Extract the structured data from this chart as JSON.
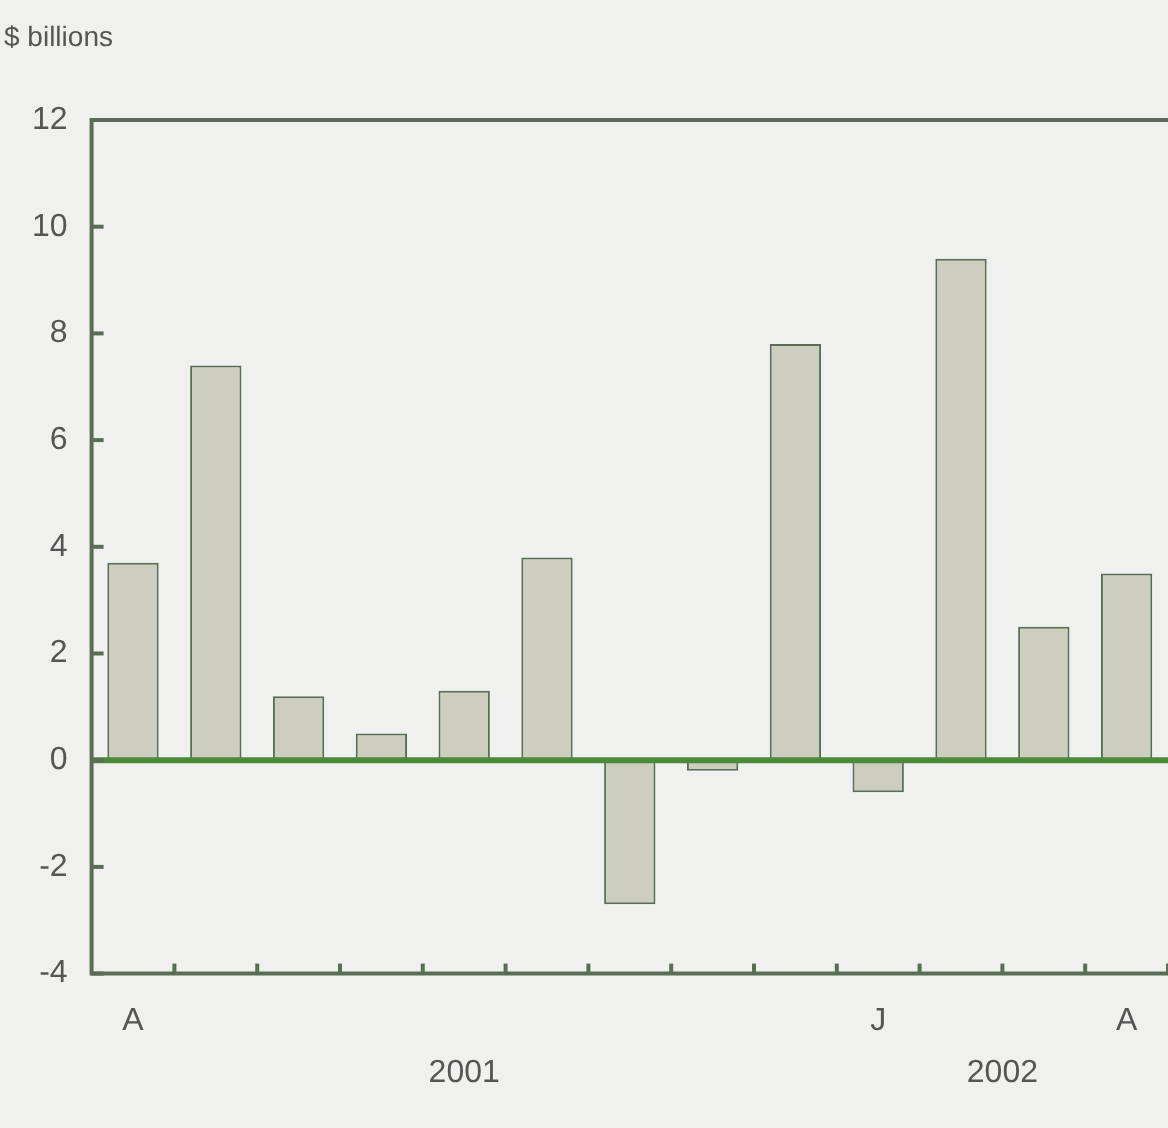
{
  "chart_data": {
    "type": "bar",
    "ylabel": "$ billions",
    "categories": [
      "A",
      null,
      null,
      null,
      null,
      null,
      null,
      null,
      null,
      "J",
      null,
      null,
      "A"
    ],
    "values": [
      3.7,
      7.4,
      1.2,
      0.5,
      1.3,
      3.8,
      -2.7,
      -0.2,
      7.8,
      -0.6,
      9.4,
      2.5,
      3.5
    ],
    "color": "#cdcdc0",
    "ylim": [
      -4,
      12
    ],
    "yticks": [
      -4,
      -2,
      0,
      2,
      4,
      6,
      8,
      10,
      12
    ],
    "ref_lines": [
      {
        "axis": "y",
        "value": 0,
        "color": "#4a8a3a"
      }
    ],
    "annotations": [
      "2001",
      "2002"
    ],
    "grid": false,
    "legend": false
  }
}
